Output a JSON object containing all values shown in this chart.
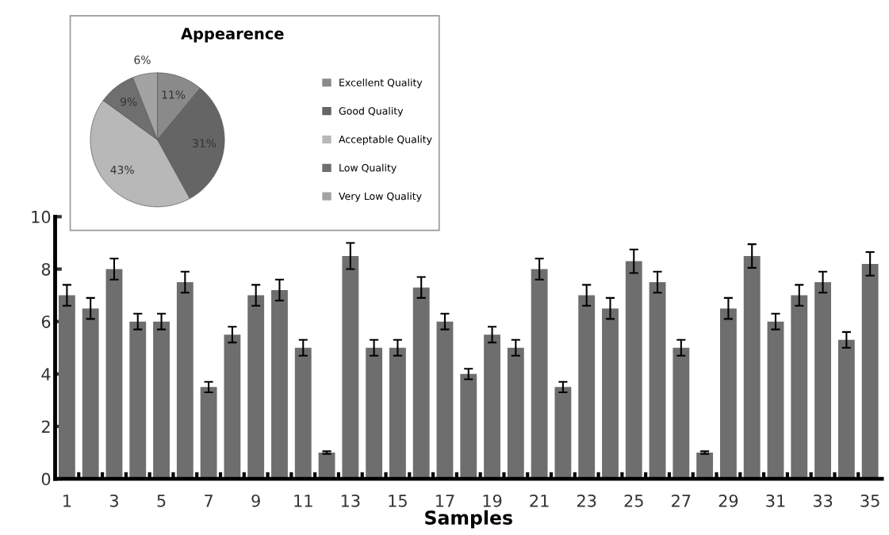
{
  "chart_data": [
    {
      "type": "bar",
      "xlabel": "Samples",
      "categories": [
        "1",
        null,
        "3",
        null,
        "5",
        null,
        "7",
        null,
        "9",
        null,
        "11",
        null,
        "13",
        null,
        "15",
        null,
        "17",
        null,
        "19",
        null,
        "21",
        null,
        "23",
        null,
        "25",
        null,
        "27",
        null,
        "29",
        null,
        "31",
        null,
        "33",
        null,
        "35"
      ],
      "values": [
        7,
        6.5,
        8,
        6,
        6,
        7.5,
        3.5,
        5.5,
        7,
        7.2,
        5,
        1,
        8.5,
        5,
        5,
        7.3,
        6,
        4,
        5.5,
        5,
        8,
        3.5,
        7,
        6.5,
        8.3,
        7.5,
        5,
        1,
        6.5,
        8.5,
        6,
        7,
        7.5,
        5.3,
        8.2
      ],
      "errors": [
        0.4,
        0.4,
        0.4,
        0.3,
        0.3,
        0.4,
        0.2,
        0.3,
        0.4,
        0.4,
        0.3,
        0.05,
        0.5,
        0.3,
        0.3,
        0.4,
        0.3,
        0.2,
        0.3,
        0.3,
        0.4,
        0.2,
        0.4,
        0.4,
        0.45,
        0.4,
        0.3,
        0.05,
        0.4,
        0.45,
        0.3,
        0.4,
        0.4,
        0.3,
        0.45
      ],
      "color": "#6e6e6e",
      "ylim": [
        0,
        10
      ],
      "yticks": [
        0,
        2,
        4,
        6,
        8,
        10
      ],
      "grid": false,
      "legend": false
    },
    {
      "type": "pie",
      "title": "Appearence",
      "categories": [
        "Excellent Quality",
        "Good Quality",
        "Acceptable Quality",
        "Low Quality",
        "Very Low Quality"
      ],
      "values": [
        11,
        31,
        43,
        9,
        6
      ],
      "value_labels": [
        "11%",
        "31%",
        "43%",
        "9%",
        "6%"
      ],
      "colors": [
        "#8a8a8a",
        "#656565",
        "#b8b8b8",
        "#6f6f6f",
        "#a3a3a3"
      ],
      "legend": "right"
    }
  ]
}
